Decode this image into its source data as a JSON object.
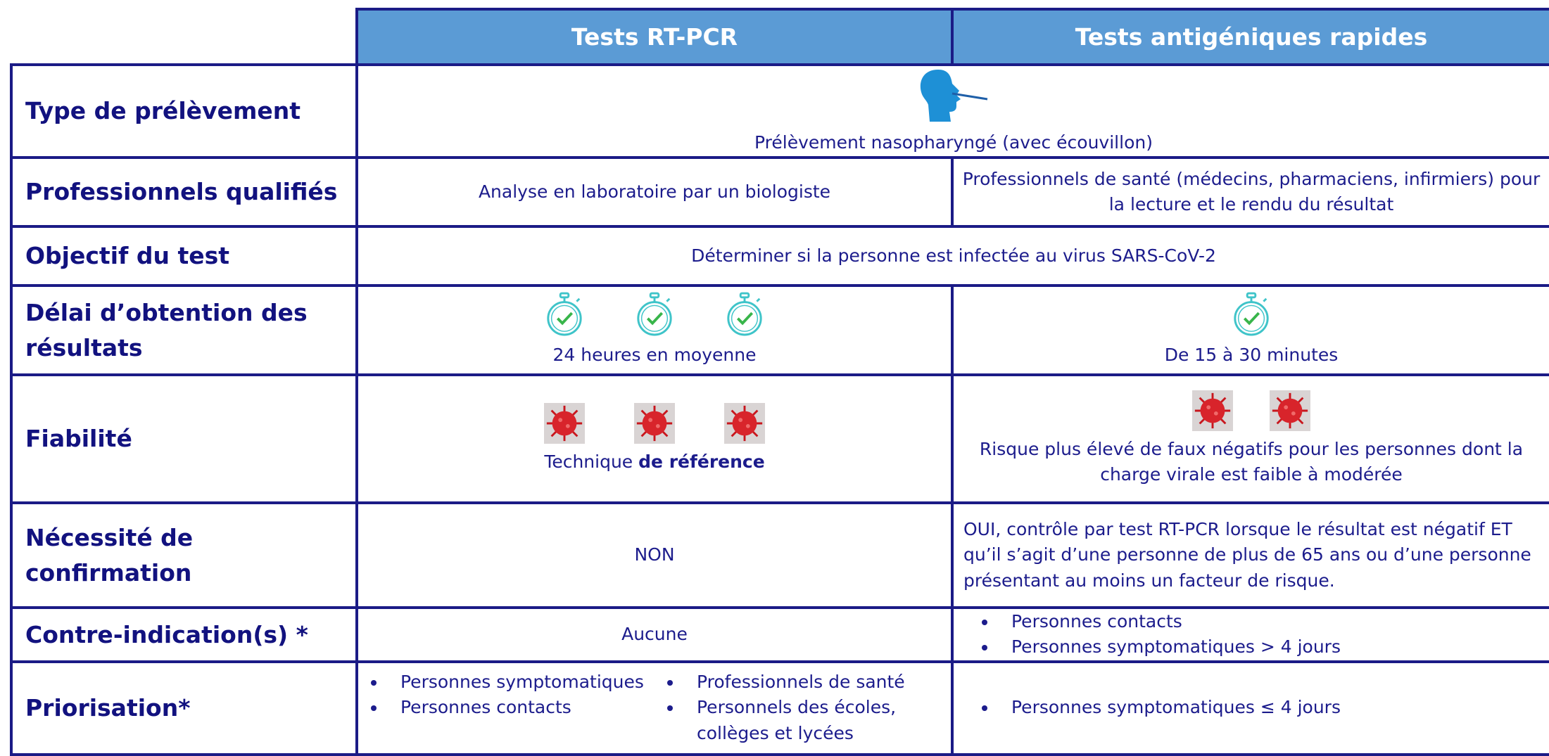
{
  "header": {
    "columns": [
      "Tests RT-PCR",
      "Tests antigéniques rapides"
    ]
  },
  "rows": [
    {
      "label": "Type de prélèvement",
      "merged": "Prélèvement nasopharyngé (avec écouvillon)"
    },
    {
      "label": "Professionnels qualifiés",
      "cells": [
        "Analyse en laboratoire par un biologiste",
        "Professionnels de santé (médecins, pharmaciens, infirmiers) pour la lecture et le rendu du résultat"
      ]
    },
    {
      "label": "Objectif du test",
      "merged": "Déterminer si la personne est infectée au virus SARS-CoV-2"
    },
    {
      "label": "Délai d’obtention des résultats",
      "cells": [
        "24 heures en moyenne",
        "De 15 à 30 minutes"
      ]
    },
    {
      "label": "Fiabilité",
      "cells": [
        {
          "text": "Technique",
          "emphasis": "de référence"
        },
        "Risque plus élevé de faux négatifs pour les personnes dont la charge virale est faible à modérée"
      ]
    },
    {
      "label": "Nécessité de confirmation",
      "cells": [
        "NON",
        "OUI, contrôle par test RT-PCR lorsque le résultat est négatif ET qu’il s’agit d’une personne de plus de 65 ans ou d’une personne présentant au moins un facteur de risque."
      ]
    },
    {
      "label": "Contre-indication(s) *",
      "cells": [
        "Aucune",
        [
          "Personnes contacts",
          "Personnes symptomatiques > 4 jours"
        ]
      ]
    },
    {
      "label": "Priorisation*",
      "cells": [
        [
          [
            "Personnes symptomatiques",
            "Personnes contacts"
          ],
          [
            "Professionnels de santé",
            "Personnels des écoles, collèges et lycées"
          ]
        ],
        [
          "Personnes symptomatiques ≤ 4 jours"
        ]
      ]
    }
  ]
}
